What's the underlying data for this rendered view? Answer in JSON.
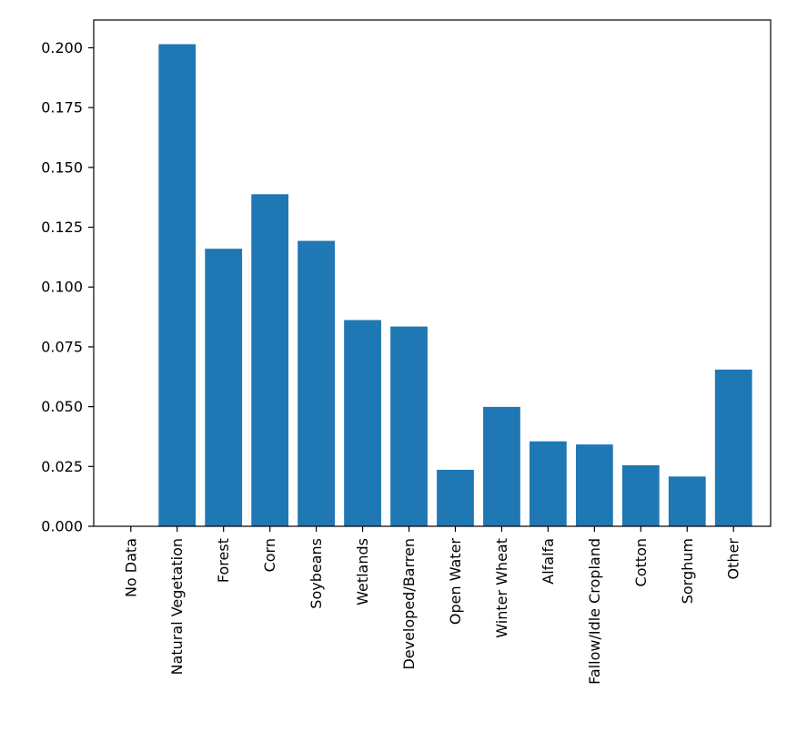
{
  "chart_data": {
    "type": "bar",
    "categories": [
      "No Data",
      "Natural Vegetation",
      "Forest",
      "Corn",
      "Soybeans",
      "Wetlands",
      "Developed/Barren",
      "Open Water",
      "Winter Wheat",
      "Alfalfa",
      "Fallow/Idle Cropland",
      "Cotton",
      "Sorghum",
      "Other"
    ],
    "values": [
      0.0,
      0.2015,
      0.116,
      0.1388,
      0.1193,
      0.0862,
      0.0835,
      0.0236,
      0.0499,
      0.0355,
      0.0342,
      0.0255,
      0.0208,
      0.0655
    ],
    "yticks": [
      "0.000",
      "0.025",
      "0.050",
      "0.075",
      "0.100",
      "0.125",
      "0.150",
      "0.175",
      "0.200"
    ],
    "ylim": [
      0,
      0.2116
    ],
    "title": "",
    "xlabel": "",
    "ylabel": "",
    "grid": false,
    "bar_color": "#1f77b4"
  }
}
